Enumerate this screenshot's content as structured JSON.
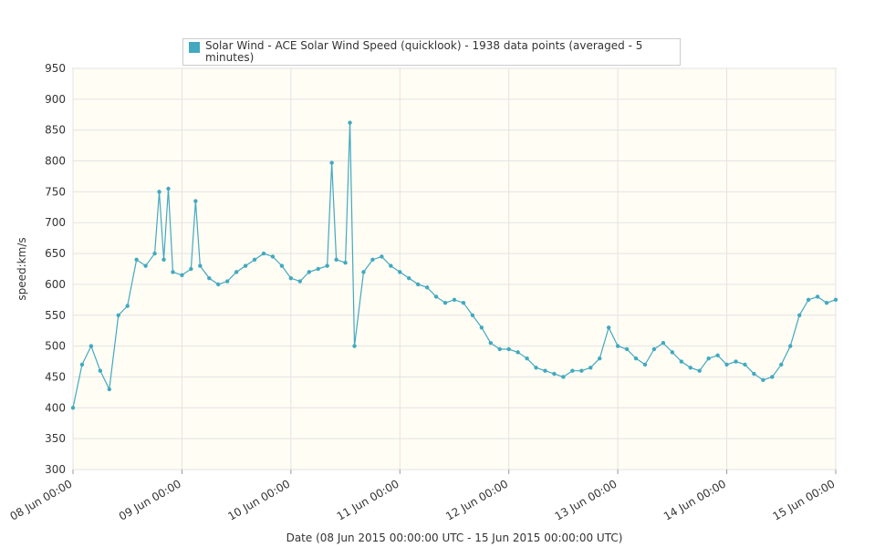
{
  "chart_data": {
    "type": "line",
    "legend": "Solar Wind - ACE Solar Wind Speed (quicklook) - 1938 data points (averaged - 5 minutes)",
    "ylabel": "speed:km/s",
    "xlabel": "Date (08 Jun 2015 00:00:00 UTC - 15 Jun 2015 00:00:00 UTC)",
    "ylim": [
      300,
      950
    ],
    "yticks": [
      300,
      350,
      400,
      450,
      500,
      550,
      600,
      650,
      700,
      750,
      800,
      850,
      900,
      950
    ],
    "xlim": [
      "2015-06-08T00:00",
      "2015-06-15T00:00"
    ],
    "xticks": [
      {
        "value": "2015-06-08T00:00",
        "label": "08 Jun 00:00"
      },
      {
        "value": "2015-06-09T00:00",
        "label": "09 Jun 00:00"
      },
      {
        "value": "2015-06-10T00:00",
        "label": "10 Jun 00:00"
      },
      {
        "value": "2015-06-11T00:00",
        "label": "11 Jun 00:00"
      },
      {
        "value": "2015-06-12T00:00",
        "label": "12 Jun 00:00"
      },
      {
        "value": "2015-06-13T00:00",
        "label": "13 Jun 00:00"
      },
      {
        "value": "2015-06-14T00:00",
        "label": "14 Jun 00:00"
      },
      {
        "value": "2015-06-15T00:00",
        "label": "15 Jun 00:00"
      }
    ],
    "grid": true,
    "series": [
      {
        "name": "Solar Wind - ACE Solar Wind Speed (quicklook) - 1938 data points (averaged - 5 minutes)",
        "color": "#42a9c0",
        "x": [
          "2015-06-08T00:00",
          "2015-06-08T02:00",
          "2015-06-08T04:00",
          "2015-06-08T06:00",
          "2015-06-08T08:00",
          "2015-06-08T10:00",
          "2015-06-08T12:00",
          "2015-06-08T14:00",
          "2015-06-08T16:00",
          "2015-06-08T18:00",
          "2015-06-08T19:00",
          "2015-06-08T20:00",
          "2015-06-08T21:00",
          "2015-06-08T22:00",
          "2015-06-09T00:00",
          "2015-06-09T02:00",
          "2015-06-09T03:00",
          "2015-06-09T04:00",
          "2015-06-09T06:00",
          "2015-06-09T08:00",
          "2015-06-09T10:00",
          "2015-06-09T12:00",
          "2015-06-09T14:00",
          "2015-06-09T16:00",
          "2015-06-09T18:00",
          "2015-06-09T20:00",
          "2015-06-09T22:00",
          "2015-06-10T00:00",
          "2015-06-10T02:00",
          "2015-06-10T04:00",
          "2015-06-10T06:00",
          "2015-06-10T08:00",
          "2015-06-10T09:00",
          "2015-06-10T10:00",
          "2015-06-10T12:00",
          "2015-06-10T13:00",
          "2015-06-10T14:00",
          "2015-06-10T16:00",
          "2015-06-10T18:00",
          "2015-06-10T20:00",
          "2015-06-10T22:00",
          "2015-06-11T00:00",
          "2015-06-11T02:00",
          "2015-06-11T04:00",
          "2015-06-11T06:00",
          "2015-06-11T08:00",
          "2015-06-11T10:00",
          "2015-06-11T12:00",
          "2015-06-11T14:00",
          "2015-06-11T16:00",
          "2015-06-11T18:00",
          "2015-06-11T20:00",
          "2015-06-11T22:00",
          "2015-06-12T00:00",
          "2015-06-12T02:00",
          "2015-06-12T04:00",
          "2015-06-12T06:00",
          "2015-06-12T08:00",
          "2015-06-12T10:00",
          "2015-06-12T12:00",
          "2015-06-12T14:00",
          "2015-06-12T16:00",
          "2015-06-12T18:00",
          "2015-06-12T20:00",
          "2015-06-12T22:00",
          "2015-06-13T00:00",
          "2015-06-13T02:00",
          "2015-06-13T04:00",
          "2015-06-13T06:00",
          "2015-06-13T08:00",
          "2015-06-13T10:00",
          "2015-06-13T12:00",
          "2015-06-13T14:00",
          "2015-06-13T16:00",
          "2015-06-13T18:00",
          "2015-06-13T20:00",
          "2015-06-13T22:00",
          "2015-06-14T00:00",
          "2015-06-14T02:00",
          "2015-06-14T04:00",
          "2015-06-14T06:00",
          "2015-06-14T08:00",
          "2015-06-14T10:00",
          "2015-06-14T12:00",
          "2015-06-14T14:00",
          "2015-06-14T16:00",
          "2015-06-14T18:00",
          "2015-06-14T20:00",
          "2015-06-14T22:00",
          "2015-06-15T00:00"
        ],
        "values": [
          400,
          470,
          500,
          460,
          430,
          550,
          565,
          640,
          630,
          650,
          750,
          640,
          755,
          620,
          615,
          625,
          735,
          630,
          610,
          600,
          605,
          620,
          630,
          640,
          650,
          645,
          630,
          610,
          605,
          620,
          625,
          630,
          797,
          640,
          635,
          862,
          500,
          620,
          640,
          645,
          630,
          620,
          610,
          600,
          595,
          580,
          570,
          575,
          570,
          550,
          530,
          505,
          495,
          495,
          490,
          480,
          465,
          460,
          455,
          450,
          460,
          460,
          465,
          480,
          530,
          500,
          495,
          480,
          470,
          495,
          505,
          490,
          475,
          465,
          460,
          480,
          485,
          470,
          475,
          470,
          455,
          445,
          450,
          470,
          500,
          550,
          575,
          580,
          570,
          575
        ]
      }
    ]
  }
}
